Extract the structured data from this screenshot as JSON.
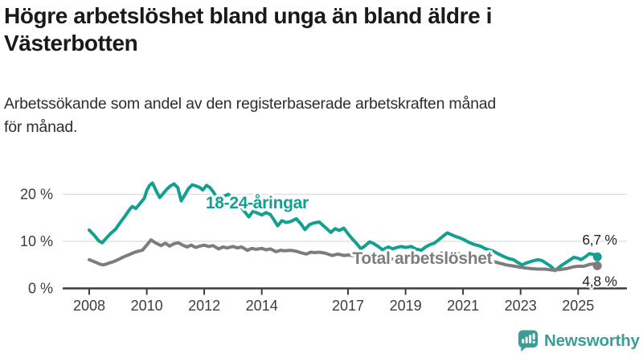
{
  "header": {
    "title": "Högre arbetslöshet bland unga än bland äldre i Västerbotten",
    "subtitle": "Arbetssökande som andel av den registerbaserade arbetskraften månad för månad."
  },
  "footer": {
    "brand": "Newsworthy",
    "logo_icon": "bar-chart-speech-bubble-icon",
    "brand_color": "#3b9e96"
  },
  "colors": {
    "young_series": "#13a091",
    "total_series": "#7d7d7d",
    "gridline": "#dcdcdc",
    "axis": "#3d3d3d",
    "value_label": "#222222"
  },
  "chart_data": {
    "type": "line",
    "title": "Högre arbetslöshet bland unga än bland äldre i Västerbotten",
    "subtitle": "Arbetssökande som andel av den registerbaserade arbetskraften månad för månad.",
    "unit": "%",
    "legend_position": "inline-labels",
    "x_axis": {
      "tick_years": [
        2008,
        2010,
        2012,
        2014,
        2017,
        2019,
        2021,
        2023,
        2025
      ],
      "tick_labels": [
        "2008",
        "2010",
        "2012",
        "2014",
        "2017",
        "2019",
        "2021",
        "2023",
        "2025"
      ],
      "range": [
        2007.1,
        2026.7
      ]
    },
    "y_axis": {
      "ticks": [
        {
          "value": 0,
          "label": "0 %"
        },
        {
          "value": 10,
          "label": "10 %"
        },
        {
          "value": 20,
          "label": "20 %"
        }
      ],
      "range": [
        0,
        23
      ],
      "gridlines": true
    },
    "series": [
      {
        "name": "18-24-åringar",
        "color": "#13a091",
        "end_value_label": "6,7 %",
        "end_value": 6.7,
        "points": [
          [
            2008.0,
            12.4
          ],
          [
            2008.17,
            11.3
          ],
          [
            2008.33,
            10.1
          ],
          [
            2008.45,
            9.7
          ],
          [
            2008.58,
            10.6
          ],
          [
            2008.75,
            11.7
          ],
          [
            2008.92,
            12.6
          ],
          [
            2009.08,
            14.0
          ],
          [
            2009.25,
            15.4
          ],
          [
            2009.42,
            16.9
          ],
          [
            2009.5,
            17.4
          ],
          [
            2009.62,
            17.0
          ],
          [
            2009.75,
            17.9
          ],
          [
            2009.92,
            19.2
          ],
          [
            2010.0,
            20.8
          ],
          [
            2010.1,
            21.9
          ],
          [
            2010.2,
            22.4
          ],
          [
            2010.33,
            20.7
          ],
          [
            2010.45,
            19.3
          ],
          [
            2010.58,
            20.2
          ],
          [
            2010.7,
            21.1
          ],
          [
            2010.83,
            21.8
          ],
          [
            2010.95,
            22.2
          ],
          [
            2011.08,
            21.4
          ],
          [
            2011.2,
            18.6
          ],
          [
            2011.33,
            19.9
          ],
          [
            2011.45,
            21.2
          ],
          [
            2011.58,
            22.0
          ],
          [
            2011.7,
            21.8
          ],
          [
            2011.83,
            21.5
          ],
          [
            2011.95,
            20.9
          ],
          [
            2012.08,
            21.9
          ],
          [
            2012.2,
            21.4
          ],
          [
            2012.33,
            20.4
          ],
          [
            2012.45,
            19.0
          ],
          [
            2012.58,
            18.3
          ],
          [
            2012.7,
            19.6
          ],
          [
            2012.83,
            20.0
          ],
          [
            2012.95,
            19.3
          ],
          [
            2013.08,
            18.3
          ],
          [
            2013.25,
            17.5
          ],
          [
            2013.42,
            16.2
          ],
          [
            2013.55,
            15.2
          ],
          [
            2013.7,
            16.4
          ],
          [
            2013.85,
            16.0
          ],
          [
            2014.0,
            15.6
          ],
          [
            2014.15,
            16.1
          ],
          [
            2014.3,
            15.7
          ],
          [
            2014.45,
            14.3
          ],
          [
            2014.55,
            13.3
          ],
          [
            2014.7,
            14.4
          ],
          [
            2014.85,
            14.0
          ],
          [
            2015.0,
            14.2
          ],
          [
            2015.2,
            14.8
          ],
          [
            2015.35,
            13.8
          ],
          [
            2015.5,
            12.5
          ],
          [
            2015.65,
            13.5
          ],
          [
            2015.8,
            13.9
          ],
          [
            2016.0,
            14.1
          ],
          [
            2016.2,
            13.0
          ],
          [
            2016.4,
            11.9
          ],
          [
            2016.55,
            12.7
          ],
          [
            2016.7,
            12.3
          ],
          [
            2016.85,
            12.8
          ],
          [
            2017.0,
            11.6
          ],
          [
            2017.15,
            10.5
          ],
          [
            2017.3,
            9.5
          ],
          [
            2017.45,
            8.4
          ],
          [
            2017.6,
            9.1
          ],
          [
            2017.75,
            9.9
          ],
          [
            2017.9,
            9.5
          ],
          [
            2018.05,
            8.9
          ],
          [
            2018.2,
            8.2
          ],
          [
            2018.4,
            8.8
          ],
          [
            2018.55,
            8.4
          ],
          [
            2018.7,
            8.7
          ],
          [
            2018.85,
            8.9
          ],
          [
            2019.0,
            8.7
          ],
          [
            2019.2,
            8.9
          ],
          [
            2019.35,
            8.4
          ],
          [
            2019.55,
            8.1
          ],
          [
            2019.7,
            8.8
          ],
          [
            2019.85,
            9.3
          ],
          [
            2020.0,
            9.6
          ],
          [
            2020.15,
            10.3
          ],
          [
            2020.3,
            11.1
          ],
          [
            2020.45,
            11.8
          ],
          [
            2020.6,
            11.4
          ],
          [
            2020.75,
            11.0
          ],
          [
            2020.9,
            10.7
          ],
          [
            2021.05,
            10.3
          ],
          [
            2021.2,
            9.8
          ],
          [
            2021.4,
            9.3
          ],
          [
            2021.6,
            9.0
          ],
          [
            2021.75,
            8.5
          ],
          [
            2021.9,
            8.2
          ],
          [
            2022.05,
            7.9
          ],
          [
            2022.2,
            7.4
          ],
          [
            2022.4,
            6.8
          ],
          [
            2022.6,
            6.3
          ],
          [
            2022.75,
            6.1
          ],
          [
            2022.9,
            5.5
          ],
          [
            2023.05,
            5.0
          ],
          [
            2023.2,
            5.4
          ],
          [
            2023.4,
            5.8
          ],
          [
            2023.6,
            6.1
          ],
          [
            2023.75,
            5.9
          ],
          [
            2023.9,
            5.3
          ],
          [
            2024.05,
            4.7
          ],
          [
            2024.2,
            3.8
          ],
          [
            2024.4,
            4.8
          ],
          [
            2024.55,
            5.4
          ],
          [
            2024.7,
            6.0
          ],
          [
            2024.85,
            6.6
          ],
          [
            2025.0,
            6.4
          ],
          [
            2025.1,
            6.1
          ],
          [
            2025.25,
            6.7
          ],
          [
            2025.4,
            7.4
          ],
          [
            2025.55,
            7.2
          ],
          [
            2025.67,
            6.7
          ]
        ]
      },
      {
        "name": "Total arbetslöshet",
        "color": "#7d7d7d",
        "end_value_label": "4,8 %",
        "end_value": 4.8,
        "points": [
          [
            2008.0,
            6.1
          ],
          [
            2008.2,
            5.6
          ],
          [
            2008.4,
            5.1
          ],
          [
            2008.5,
            5.0
          ],
          [
            2008.65,
            5.3
          ],
          [
            2008.85,
            5.7
          ],
          [
            2009.0,
            6.1
          ],
          [
            2009.2,
            6.7
          ],
          [
            2009.4,
            7.2
          ],
          [
            2009.55,
            7.6
          ],
          [
            2009.7,
            7.9
          ],
          [
            2009.85,
            8.1
          ],
          [
            2010.0,
            9.2
          ],
          [
            2010.15,
            10.3
          ],
          [
            2010.3,
            9.7
          ],
          [
            2010.5,
            9.1
          ],
          [
            2010.65,
            9.6
          ],
          [
            2010.8,
            9.0
          ],
          [
            2010.95,
            9.5
          ],
          [
            2011.1,
            9.7
          ],
          [
            2011.25,
            9.2
          ],
          [
            2011.4,
            8.8
          ],
          [
            2011.55,
            9.2
          ],
          [
            2011.7,
            8.7
          ],
          [
            2011.85,
            9.0
          ],
          [
            2012.0,
            9.2
          ],
          [
            2012.15,
            8.9
          ],
          [
            2012.3,
            9.1
          ],
          [
            2012.5,
            8.4
          ],
          [
            2012.65,
            8.8
          ],
          [
            2012.8,
            8.6
          ],
          [
            2013.0,
            8.9
          ],
          [
            2013.15,
            8.6
          ],
          [
            2013.3,
            8.8
          ],
          [
            2013.5,
            8.1
          ],
          [
            2013.65,
            8.5
          ],
          [
            2013.8,
            8.3
          ],
          [
            2014.0,
            8.5
          ],
          [
            2014.15,
            8.2
          ],
          [
            2014.3,
            8.4
          ],
          [
            2014.5,
            7.8
          ],
          [
            2014.65,
            8.1
          ],
          [
            2014.8,
            8.0
          ],
          [
            2015.0,
            8.1
          ],
          [
            2015.2,
            7.9
          ],
          [
            2015.4,
            7.5
          ],
          [
            2015.55,
            7.3
          ],
          [
            2015.7,
            7.7
          ],
          [
            2015.85,
            7.6
          ],
          [
            2016.0,
            7.7
          ],
          [
            2016.2,
            7.5
          ],
          [
            2016.45,
            7.0
          ],
          [
            2016.65,
            7.3
          ],
          [
            2016.85,
            7.0
          ],
          [
            2017.0,
            7.1
          ],
          [
            2017.25,
            6.9
          ],
          [
            2017.5,
            6.5
          ],
          [
            2017.75,
            6.8
          ],
          [
            2018.0,
            6.8
          ],
          [
            2018.25,
            6.5
          ],
          [
            2018.5,
            6.2
          ],
          [
            2018.75,
            6.4
          ],
          [
            2019.0,
            6.5
          ],
          [
            2019.25,
            6.3
          ],
          [
            2019.5,
            6.1
          ],
          [
            2019.75,
            6.4
          ],
          [
            2020.0,
            6.8
          ],
          [
            2020.25,
            7.5
          ],
          [
            2020.5,
            7.8
          ],
          [
            2020.75,
            7.5
          ],
          [
            2021.0,
            7.2
          ],
          [
            2021.25,
            6.8
          ],
          [
            2021.5,
            6.4
          ],
          [
            2021.75,
            6.1
          ],
          [
            2022.0,
            5.8
          ],
          [
            2022.25,
            5.4
          ],
          [
            2022.5,
            5.0
          ],
          [
            2022.7,
            4.8
          ],
          [
            2022.9,
            4.6
          ],
          [
            2023.1,
            4.4
          ],
          [
            2023.35,
            4.2
          ],
          [
            2023.6,
            4.1
          ],
          [
            2023.85,
            4.1
          ],
          [
            2024.1,
            3.9
          ],
          [
            2024.35,
            4.0
          ],
          [
            2024.6,
            4.2
          ],
          [
            2024.85,
            4.6
          ],
          [
            2025.0,
            4.7
          ],
          [
            2025.2,
            4.7
          ],
          [
            2025.4,
            5.1
          ],
          [
            2025.55,
            5.2
          ],
          [
            2025.67,
            4.8
          ]
        ]
      }
    ],
    "annotations": [
      {
        "id": "series-label-young",
        "text": "18-24-åringar",
        "x": 2012.05,
        "y_pct": 18.1,
        "color": "#13a091",
        "anchor": "start",
        "bold": true,
        "size": 21
      },
      {
        "id": "series-label-total",
        "text": "Total arbetslöshet",
        "x": 2017.15,
        "y_pct": 6.3,
        "color": "#7d7d7d",
        "anchor": "start",
        "bold": true,
        "size": 21
      },
      {
        "id": "end-label-young",
        "text": "6,7 %",
        "x": 2026.35,
        "y_pct": 10.35,
        "color": "#222222",
        "anchor": "end",
        "bold": false,
        "size": 17.5
      },
      {
        "id": "end-label-total",
        "text": "4,8 %",
        "x": 2026.35,
        "y_pct": 1.55,
        "color": "#222222",
        "anchor": "end",
        "bold": false,
        "size": 17.5
      }
    ]
  }
}
